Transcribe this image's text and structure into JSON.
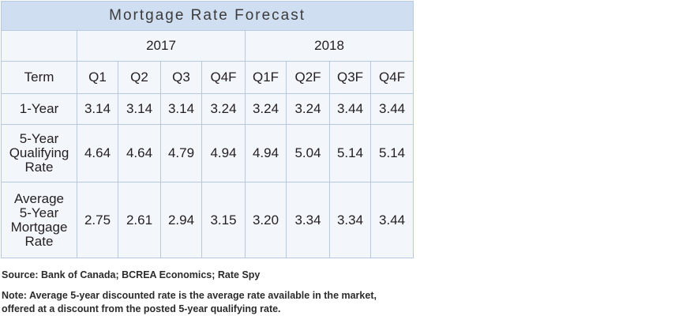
{
  "table": {
    "title": "Mortgage Rate Forecast",
    "years": [
      "2017",
      "2018"
    ],
    "header": {
      "term_label": "Term",
      "quarters": [
        "Q1",
        "Q2",
        "Q3",
        "Q4F",
        "Q1F",
        "Q2F",
        "Q3F",
        "Q4F"
      ]
    },
    "rows": [
      {
        "term_lines": [
          "1-Year"
        ],
        "values": [
          "3.14",
          "3.14",
          "3.14",
          "3.24",
          "3.24",
          "3.24",
          "3.44",
          "3.44"
        ]
      },
      {
        "term_lines": [
          "5-Year",
          "Qualifying",
          "Rate"
        ],
        "values": [
          "4.64",
          "4.64",
          "4.79",
          "4.94",
          "4.94",
          "5.04",
          "5.14",
          "5.14"
        ]
      },
      {
        "term_lines": [
          "Average",
          "5-Year",
          "Mortgage",
          "Rate"
        ],
        "values": [
          "2.75",
          "2.61",
          "2.94",
          "3.15",
          "3.20",
          "3.34",
          "3.34",
          "3.44"
        ]
      }
    ]
  },
  "footer": {
    "source": "Source: Bank of Canada; BCREA Economics; Rate Spy",
    "note_lines": [
      "Note: Average 5-year discounted rate is the average rate available in the market,",
      "offered at a discount from the posted 5-year qualifying rate."
    ]
  },
  "colors": {
    "title_background": "#d0def1",
    "cell_background": "#f3f6fb",
    "border": "#b7c9e2",
    "text": "#231f20"
  }
}
